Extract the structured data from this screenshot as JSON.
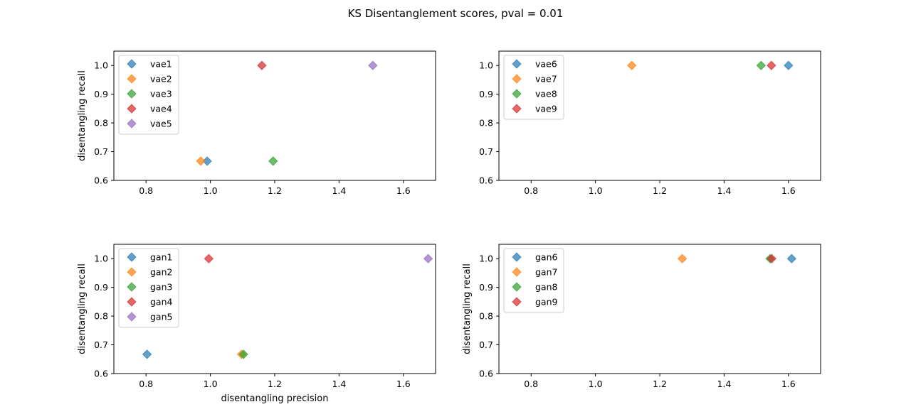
{
  "suptitle": "KS Disentanglement scores, pval = 0.01",
  "colors": [
    "#1f77b4",
    "#ff7f0e",
    "#2ca02c",
    "#d62728",
    "#9467bd"
  ],
  "chart_data": [
    {
      "type": "scatter",
      "xlabel": "",
      "ylabel": "disentangling recall",
      "xlim": [
        0.7,
        1.7
      ],
      "ylim": [
        0.6,
        1.05
      ],
      "xticks": [
        0.8,
        1.0,
        1.2,
        1.4,
        1.6
      ],
      "yticks": [
        0.6,
        0.7,
        0.8,
        0.9,
        1.0
      ],
      "legend_position": "upper-left",
      "series": [
        {
          "name": "vae1",
          "x": [
            0.99
          ],
          "y": [
            0.667
          ]
        },
        {
          "name": "vae2",
          "x": [
            0.97
          ],
          "y": [
            0.667
          ]
        },
        {
          "name": "vae3",
          "x": [
            1.195
          ],
          "y": [
            0.667
          ]
        },
        {
          "name": "vae4",
          "x": [
            1.16
          ],
          "y": [
            1.0
          ]
        },
        {
          "name": "vae5",
          "x": [
            1.505
          ],
          "y": [
            1.0
          ]
        }
      ]
    },
    {
      "type": "scatter",
      "xlabel": "",
      "ylabel": "",
      "xlim": [
        0.7,
        1.7
      ],
      "ylim": [
        0.6,
        1.05
      ],
      "xticks": [
        0.8,
        1.0,
        1.2,
        1.4,
        1.6
      ],
      "yticks": [
        0.6,
        0.7,
        0.8,
        0.9,
        1.0
      ],
      "legend_position": "upper-left",
      "series": [
        {
          "name": "vae6",
          "x": [
            1.6
          ],
          "y": [
            1.0
          ]
        },
        {
          "name": "vae7",
          "x": [
            1.113
          ],
          "y": [
            1.0
          ]
        },
        {
          "name": "vae8",
          "x": [
            1.515
          ],
          "y": [
            1.0
          ]
        },
        {
          "name": "vae9",
          "x": [
            1.547
          ],
          "y": [
            1.0
          ]
        }
      ]
    },
    {
      "type": "scatter",
      "xlabel": "disentangling precision",
      "ylabel": "disentangling recall",
      "xlim": [
        0.7,
        1.7
      ],
      "ylim": [
        0.6,
        1.05
      ],
      "xticks": [
        0.8,
        1.0,
        1.2,
        1.4,
        1.6
      ],
      "yticks": [
        0.6,
        0.7,
        0.8,
        0.9,
        1.0
      ],
      "legend_position": "upper-left",
      "series": [
        {
          "name": "gan1",
          "x": [
            0.803
          ],
          "y": [
            0.667
          ]
        },
        {
          "name": "gan2",
          "x": [
            1.097
          ],
          "y": [
            0.667
          ]
        },
        {
          "name": "gan3",
          "x": [
            1.103
          ],
          "y": [
            0.667
          ]
        },
        {
          "name": "gan4",
          "x": [
            0.995
          ],
          "y": [
            1.0
          ]
        },
        {
          "name": "gan5",
          "x": [
            1.677
          ],
          "y": [
            1.0
          ]
        }
      ]
    },
    {
      "type": "scatter",
      "xlabel": "",
      "ylabel": "disentangling recall",
      "xlim": [
        0.7,
        1.7
      ],
      "ylim": [
        0.6,
        1.05
      ],
      "xticks": [
        0.8,
        1.0,
        1.2,
        1.4,
        1.6
      ],
      "yticks": [
        0.6,
        0.7,
        0.8,
        0.9,
        1.0
      ],
      "legend_position": "upper-left",
      "series": [
        {
          "name": "gan6",
          "x": [
            1.61
          ],
          "y": [
            1.0
          ]
        },
        {
          "name": "gan7",
          "x": [
            1.27
          ],
          "y": [
            1.0
          ]
        },
        {
          "name": "gan8",
          "x": [
            1.543
          ],
          "y": [
            1.0
          ]
        },
        {
          "name": "gan9",
          "x": [
            1.548
          ],
          "y": [
            1.0
          ]
        }
      ]
    }
  ]
}
